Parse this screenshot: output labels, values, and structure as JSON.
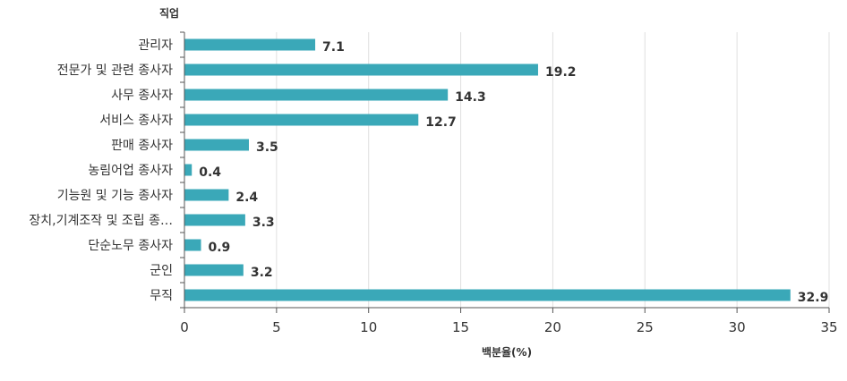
{
  "chart_data": {
    "type": "bar",
    "orientation": "horizontal",
    "ylabel": "직업",
    "xlabel": "백분율(%)",
    "categories": [
      "관리자",
      "전문가 및 관련 종사자",
      "사무 종사자",
      "서비스 종사자",
      "판매 종사자",
      "농림어업 종사자",
      "기능원 및 기능 종사자",
      "장치,기계조작 및 조립 종…",
      "단순노무 종사자",
      "군인",
      "무직"
    ],
    "values": [
      7.1,
      19.2,
      14.3,
      12.7,
      3.5,
      0.4,
      2.4,
      3.3,
      0.9,
      3.2,
      32.9
    ],
    "value_labels": [
      "7.1",
      "19.2",
      "14.3",
      "12.7",
      "3.5",
      "0.4",
      "2.4",
      "3.3",
      "0.9",
      "3.2",
      "32.9"
    ],
    "xlim": [
      0,
      35
    ],
    "xticks": [
      0,
      5,
      10,
      15,
      20,
      25,
      30,
      35
    ],
    "xtick_labels": [
      "0",
      "5",
      "10",
      "15",
      "20",
      "25",
      "30",
      "35"
    ],
    "grid": "vertical",
    "legend": "none",
    "bar_color": "#3aa8b8"
  }
}
